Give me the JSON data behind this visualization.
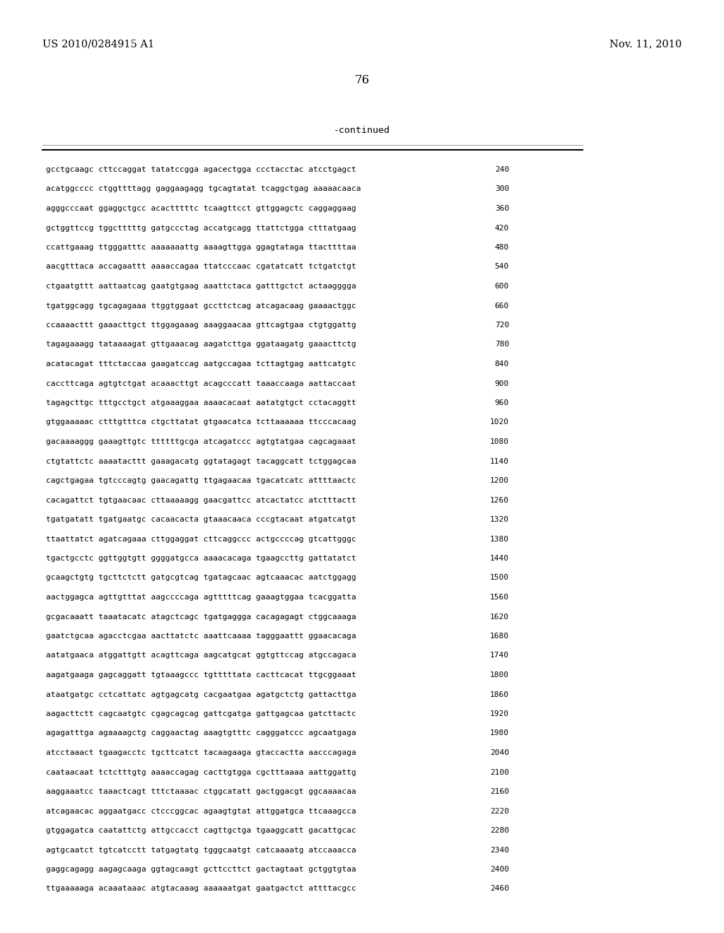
{
  "header_left": "US 2010/0284915 A1",
  "header_right": "Nov. 11, 2010",
  "page_number": "76",
  "continued_label": "-continued",
  "background_color": "#ffffff",
  "text_color": "#000000",
  "font_size_header": 10.5,
  "font_size_page": 12,
  "font_size_body": 8.0,
  "font_size_continued": 9.5,
  "sequence_lines": [
    [
      "gcctgcaagc cttccaggat tatatccgga agacectgga ccctacctac atcctgagct",
      "240"
    ],
    [
      "acatggcccc ctggttttagg gaggaagagg tgcagtatat tcaggctgag aaaaacaaca",
      "300"
    ],
    [
      "agggcccaat ggaggctgcc acactttttc tcaagttcct gttggagctc caggaggaag",
      "360"
    ],
    [
      "gctggttccg tggctttttg gatgccctag accatgcagg ttattctgga ctttatgaag",
      "420"
    ],
    [
      "ccattgaaag ttgggatttc aaaaaaattg aaaagttgga ggagtataga ttacttttaa",
      "480"
    ],
    [
      "aacgtttaca accagaattt aaaaccagaa ttatcccaac cgatatcatt tctgatctgt",
      "540"
    ],
    [
      "ctgaatgttt aattaatcag gaatgtgaag aaattctaca gatttgctct actaagggga",
      "600"
    ],
    [
      "tgatggcagg tgcagagaaa ttggtggaat gccttctcag atcagacaag gaaaactggc",
      "660"
    ],
    [
      "ccaaaacttt gaaacttgct ttggagaaag aaaggaacaa gttcagtgaa ctgtggattg",
      "720"
    ],
    [
      "tagagaaagg tataaaagat gttgaaacag aagatcttga ggataagatg gaaacttctg",
      "780"
    ],
    [
      "acatacagat tttctaccaa gaagatccag aatgccagaa tcttagtgag aattcatgtc",
      "840"
    ],
    [
      "caccttcaga agtgtctgat acaaacttgt acagcccatt taaaccaaga aattaccaat",
      "900"
    ],
    [
      "tagagcttgc tttgcctgct atgaaaggaa aaaacacaat aatatgtgct cctacaggtt",
      "960"
    ],
    [
      "gtggaaaaac ctttgtttca ctgcttatat gtgaacatca tcttaaaaaa ttcccacaag",
      "1020"
    ],
    [
      "gacaaaaggg gaaagttgtc ttttttgcga atcagatccc agtgtatgaa cagcagaaat",
      "1080"
    ],
    [
      "ctgtattctc aaaatacttt gaaagacatg ggtatagagt tacaggcatt tctggagcaa",
      "1140"
    ],
    [
      "cagctgagaa tgtcccagtg gaacagattg ttgagaacaa tgacatcatc attttaactc",
      "1200"
    ],
    [
      "cacagattct tgtgaacaac cttaaaaagg gaacgattcc atcactatcc atctttactt",
      "1260"
    ],
    [
      "tgatgatatt tgatgaatgc cacaacacta gtaaacaaca cccgtacaat atgatcatgt",
      "1320"
    ],
    [
      "ttaattatct agatcagaaa cttggaggat cttcaggccc actgccccag gtcattgggc",
      "1380"
    ],
    [
      "tgactgcctc ggttggtgtt ggggatgcca aaaacacaga tgaagccttg gattatatct",
      "1440"
    ],
    [
      "gcaagctgtg tgcttctctt gatgcgtcag tgatagcaac agtcaaacac aatctggagg",
      "1500"
    ],
    [
      "aactggagca agttgtttat aagccccaga agtttttcag gaaagtggaa tcacggatta",
      "1560"
    ],
    [
      "gcgacaaatt taaatacatc atagctcagc tgatgaggga cacagagagt ctggcaaaga",
      "1620"
    ],
    [
      "gaatctgcaa agacctcgaa aacttatctc aaattcaaaa tagggaattt ggaacacaga",
      "1680"
    ],
    [
      "aatatgaaca atggattgtt acagttcaga aagcatgcat ggtgttccag atgccagaca",
      "1740"
    ],
    [
      "aagatgaaga gagcaggatt tgtaaagccc tgtttttata cacttcacat ttgcggaaat",
      "1800"
    ],
    [
      "ataatgatgc cctcattatc agtgagcatg cacgaatgaa agatgctctg gattacttga",
      "1860"
    ],
    [
      "aagacttctt cagcaatgtc cgagcagcag gattcgatga gattgagcaa gatcttactc",
      "1920"
    ],
    [
      "agagatttga agaaaagctg caggaactag aaagtgtttc cagggatccc agcaatgaga",
      "1980"
    ],
    [
      "atcctaaact tgaagacctc tgcttcatct tacaagaaga gtaccactta aacccagaga",
      "2040"
    ],
    [
      "caataacaat tctctttgtg aaaaccagag cacttgtgga cgctttaaaa aattggattg",
      "2100"
    ],
    [
      "aaggaaatcc taaactcagt tttctaaaac ctggcatatt gactggacgt ggcaaaacaa",
      "2160"
    ],
    [
      "atcagaacac aggaatgacc ctcccggcac agaagtgtat attggatgca ttcaaagcca",
      "2220"
    ],
    [
      "gtggagatca caatattctg attgccacct cagttgctga tgaaggcatt gacattgcac",
      "2280"
    ],
    [
      "agtgcaatct tgtcatcctt tatgagtatg tgggcaatgt catcaaaatg atccaaacca",
      "2340"
    ],
    [
      "gaggcagagg aagagcaaga ggtagcaagt gcttccttct gactagtaat gctggtgtaa",
      "2400"
    ],
    [
      "ttgaaaaaga acaaataaac atgtacaaag aaaaaatgat gaatgactct attttacgcc",
      "2460"
    ]
  ]
}
